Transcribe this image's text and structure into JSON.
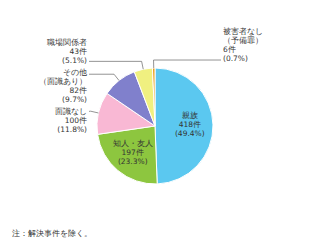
{
  "chart_data": {
    "type": "pie",
    "categories": [
      "親族\n418件\n(49.4%)",
      "知人・友人\n197件\n(23.3%)",
      "面識なし\n100件\n(11.8%)",
      "その他\n（面識あり）\n82件\n(9.7%)",
      "職場関係者\n43件\n(5.1%)",
      "被害者なし\n（予備罪）\n6件\n(0.7%)"
    ],
    "values": [
      49.4,
      23.3,
      11.8,
      9.7,
      5.1,
      0.7
    ],
    "colors": [
      "#5bc8f0",
      "#8dc63f",
      "#f9b8d4",
      "#8080cc",
      "#f0f080",
      "#e8a020"
    ],
    "annotations": [
      "注：解決事件を除く。"
    ]
  }
}
